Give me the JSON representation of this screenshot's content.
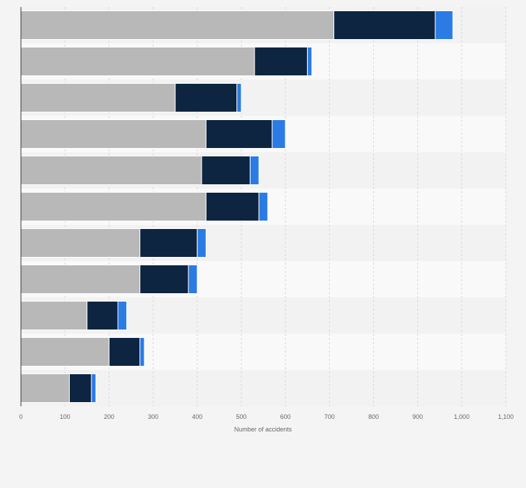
{
  "chart_data": {
    "type": "bar",
    "orientation": "horizontal",
    "stacked": true,
    "categories": [
      "",
      "",
      "",
      "",
      "",
      "",
      "",
      "",
      "",
      "",
      ""
    ],
    "series": [
      {
        "color": "#b8b8b8",
        "values": [
          710,
          530,
          350,
          420,
          410,
          420,
          270,
          270,
          150,
          200,
          110
        ]
      },
      {
        "color": "#0d2540",
        "values": [
          230,
          120,
          140,
          150,
          110,
          120,
          130,
          110,
          70,
          70,
          50
        ]
      },
      {
        "color": "#2b7be4",
        "values": [
          40,
          10,
          10,
          30,
          20,
          20,
          20,
          20,
          20,
          10,
          10
        ]
      }
    ],
    "xlabel": "Number of accidents",
    "ylabel": "",
    "xlim": [
      0,
      1100
    ],
    "xticks": [
      0,
      100,
      200,
      300,
      400,
      500,
      600,
      700,
      800,
      900,
      1000,
      1100
    ],
    "xtick_labels": [
      "0",
      "100",
      "200",
      "300",
      "400",
      "500",
      "600",
      "700",
      "800",
      "900",
      "1,000",
      "1,100"
    ],
    "grid": true,
    "legend": "none"
  }
}
